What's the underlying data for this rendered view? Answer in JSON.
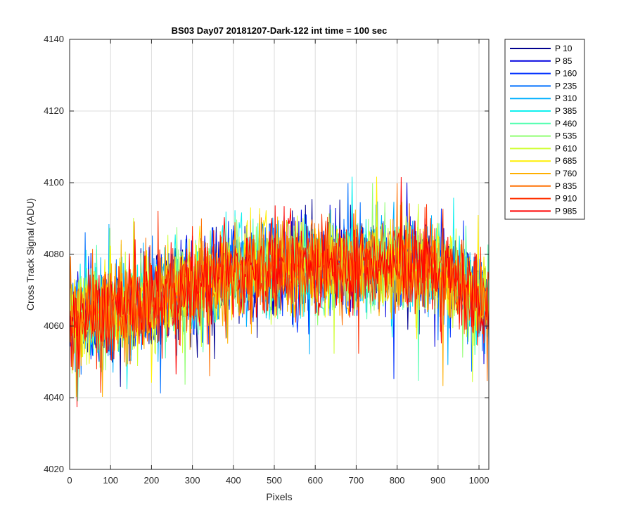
{
  "chart_data": {
    "type": "line",
    "title": "BS03 Day07 20181207-Dark-122 int time = 100 sec",
    "xlabel": "Pixels",
    "ylabel": "Cross Track Signal (ADU)",
    "xlim": [
      0,
      1024
    ],
    "ylim": [
      4020,
      4140
    ],
    "xticks": [
      0,
      100,
      200,
      300,
      400,
      500,
      600,
      700,
      800,
      900,
      1000
    ],
    "yticks": [
      4020,
      4040,
      4060,
      4080,
      4100,
      4120,
      4140
    ],
    "grid": true,
    "legend_position": "outside-right",
    "mean_profile": {
      "x": [
        0,
        100,
        200,
        300,
        400,
        500,
        600,
        700,
        800,
        900,
        1000,
        1024
      ],
      "y": [
        4062,
        4064,
        4067,
        4071,
        4075,
        4076,
        4077,
        4077,
        4077,
        4076,
        4068,
        4064
      ]
    },
    "series": [
      {
        "name": "P 10",
        "color": "#00008f"
      },
      {
        "name": "P 85",
        "color": "#0000df"
      },
      {
        "name": "P 160",
        "color": "#0030ff"
      },
      {
        "name": "P 235",
        "color": "#0070ff"
      },
      {
        "name": "P 310",
        "color": "#00b0ff"
      },
      {
        "name": "P 385",
        "color": "#10f0ef"
      },
      {
        "name": "P 460",
        "color": "#50ffaf"
      },
      {
        "name": "P 535",
        "color": "#8fff70"
      },
      {
        "name": "P 610",
        "color": "#cfff30"
      },
      {
        "name": "P 685",
        "color": "#ffef00"
      },
      {
        "name": "P 760",
        "color": "#ffaf00"
      },
      {
        "name": "P 835",
        "color": "#ff7000"
      },
      {
        "name": "P 910",
        "color": "#ff3000"
      },
      {
        "name": "P 985",
        "color": "#ff0000"
      }
    ]
  }
}
